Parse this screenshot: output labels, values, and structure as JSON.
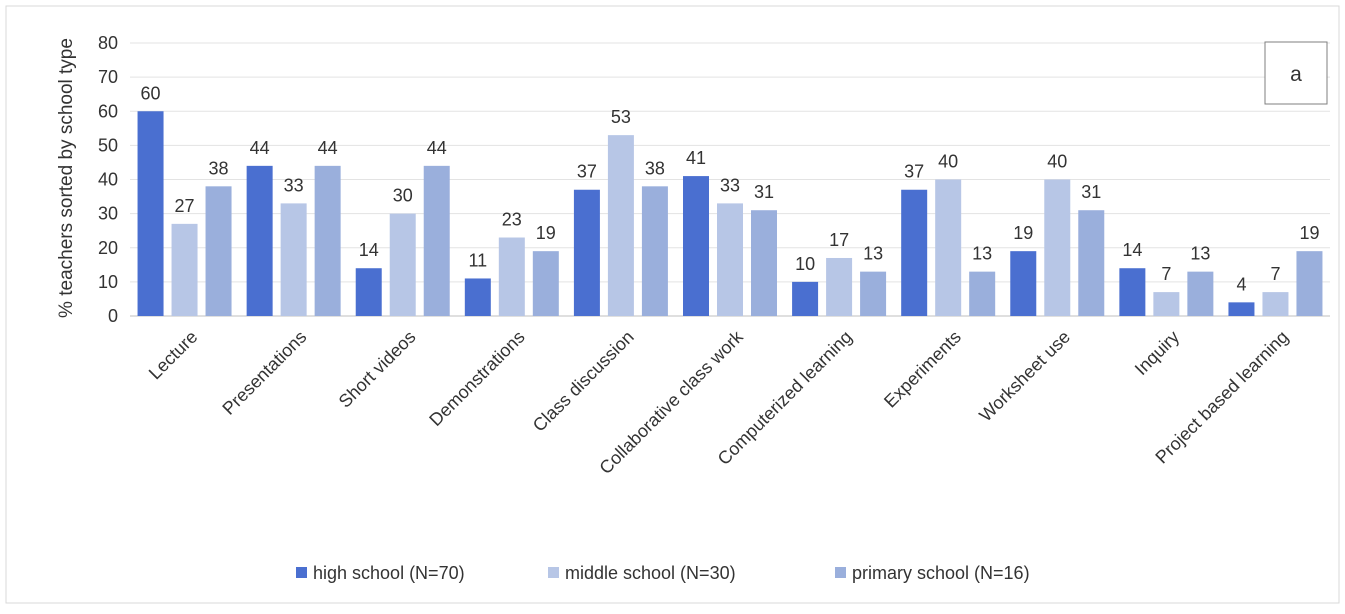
{
  "chart_data": {
    "type": "bar",
    "panel_label": "a",
    "ylabel": "% teachers sorted by school type",
    "ylim": [
      0,
      80
    ],
    "yticks": [
      0,
      10,
      20,
      30,
      40,
      50,
      60,
      70,
      80
    ],
    "grid": true,
    "legend_position": "bottom",
    "categories": [
      "Lecture",
      "Presentations",
      "Short videos",
      "Demonstrations",
      "Class discussion",
      "Collaborative class work",
      "Computerized learning",
      "Experiments",
      "Worksheet use",
      "Inquiry",
      "Project based learning"
    ],
    "series": [
      {
        "name": "high school (N=70)",
        "color": "#4a6fd0",
        "values": [
          60,
          44,
          14,
          11,
          37,
          41,
          10,
          37,
          19,
          14,
          4
        ]
      },
      {
        "name": "middle school (N=30)",
        "color": "#b7c6e6",
        "values": [
          27,
          33,
          30,
          23,
          53,
          33,
          17,
          40,
          40,
          7,
          7
        ]
      },
      {
        "name": "primary school (N=16)",
        "color": "#9aafdc",
        "values": [
          38,
          44,
          44,
          19,
          38,
          31,
          13,
          13,
          31,
          13,
          19
        ]
      }
    ]
  }
}
